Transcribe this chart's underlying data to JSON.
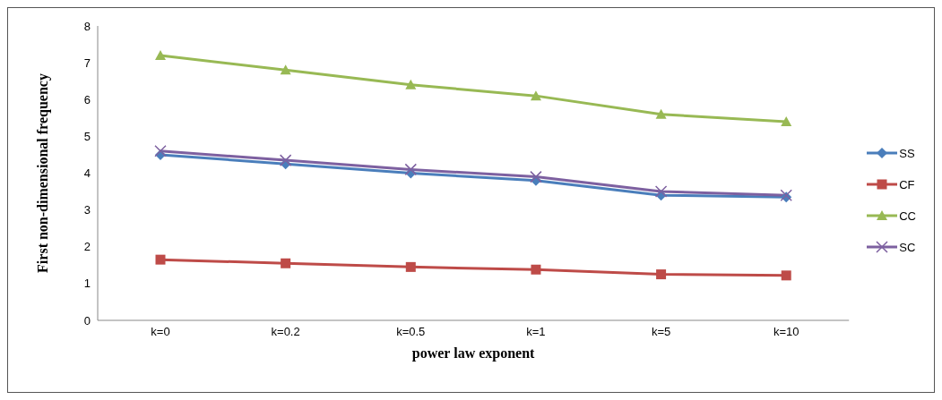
{
  "chart_data": {
    "type": "line",
    "xlabel": "power law exponent",
    "ylabel": "First non-dimensional frequency",
    "categories": [
      "k=0",
      "k=0.2",
      "k=0.5",
      "k=1",
      "k=5",
      "k=10"
    ],
    "series": [
      {
        "name": "SS",
        "color": "#4a7ebb",
        "marker": "diamond",
        "values": [
          4.5,
          4.25,
          4.0,
          3.8,
          3.4,
          3.35
        ]
      },
      {
        "name": "CF",
        "color": "#be4b48",
        "marker": "square",
        "values": [
          1.65,
          1.55,
          1.45,
          1.38,
          1.25,
          1.22
        ]
      },
      {
        "name": "CC",
        "color": "#98b954",
        "marker": "triangle",
        "values": [
          7.2,
          6.8,
          6.4,
          6.1,
          5.6,
          5.4
        ]
      },
      {
        "name": "SC",
        "color": "#7d60a0",
        "marker": "cross",
        "values": [
          4.6,
          4.35,
          4.1,
          3.9,
          3.5,
          3.4
        ]
      }
    ],
    "ylim": [
      0,
      8
    ],
    "yticks": [
      0,
      1,
      2,
      3,
      4,
      5,
      6,
      7,
      8
    ],
    "grid": false,
    "legend": "right"
  }
}
